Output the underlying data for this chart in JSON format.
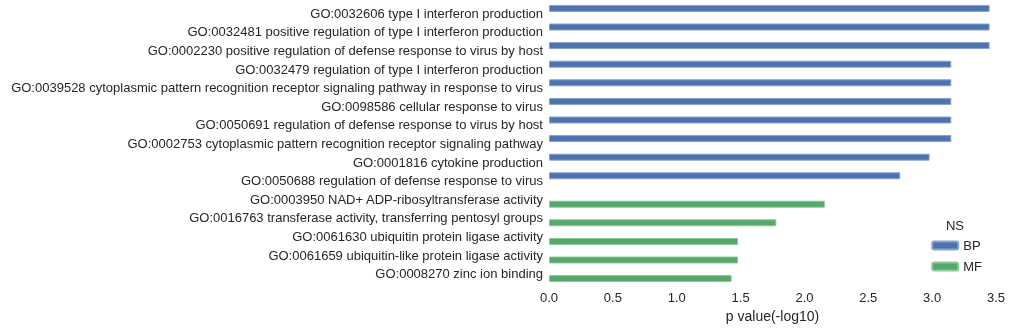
{
  "chart_data": {
    "type": "bar",
    "orientation": "horizontal",
    "xlabel": "p value(-log10)",
    "legend_title": "NS",
    "legend": "bottom right",
    "grid": false,
    "categories": [
      "GO:0032606 type I interferon production",
      "GO:0032481 positive regulation of type I interferon production",
      "GO:0002230 positive regulation of defense response to virus by host",
      "GO:0032479 regulation of type I interferon production",
      "GO:0039528 cytoplasmic pattern recognition receptor signaling pathway in response to virus",
      "GO:0098586 cellular response to virus",
      "GO:0050691 regulation of defense response to virus by host",
      "GO:0002753 cytoplasmic pattern recognition receptor signaling pathway",
      "GO:0001816 cytokine production",
      "GO:0050688 regulation of defense response to virus",
      "GO:0003950 NAD+ ADP-ribosyltransferase activity",
      "GO:0016763 transferase activity, transferring pentosyl groups",
      "GO:0061630 ubiquitin protein ligase activity",
      "GO:0061659 ubiquitin-like protein ligase activity",
      "GO:0008270 zinc ion binding"
    ],
    "series": [
      {
        "name": "BP",
        "color": "#4c72b0",
        "values": [
          3.45,
          3.45,
          3.45,
          3.15,
          3.15,
          3.15,
          3.15,
          3.15,
          2.98,
          2.75,
          null,
          null,
          null,
          null,
          null
        ]
      },
      {
        "name": "MF",
        "color": "#55a868",
        "values": [
          null,
          null,
          null,
          null,
          null,
          null,
          null,
          null,
          null,
          null,
          2.16,
          1.78,
          1.48,
          1.48,
          1.43
        ]
      }
    ],
    "xlim": [
      0,
      3.5
    ],
    "xticks": [
      {
        "value": 0,
        "label": "0.0"
      },
      {
        "value": 0.5,
        "label": "0.5"
      },
      {
        "value": 1,
        "label": "1.0"
      },
      {
        "value": 1.5,
        "label": "1.5"
      },
      {
        "value": 2,
        "label": "2.0"
      },
      {
        "value": 2.5,
        "label": "2.5"
      },
      {
        "value": 3,
        "label": "3.0"
      },
      {
        "value": 3.5,
        "label": "3.5"
      }
    ]
  }
}
